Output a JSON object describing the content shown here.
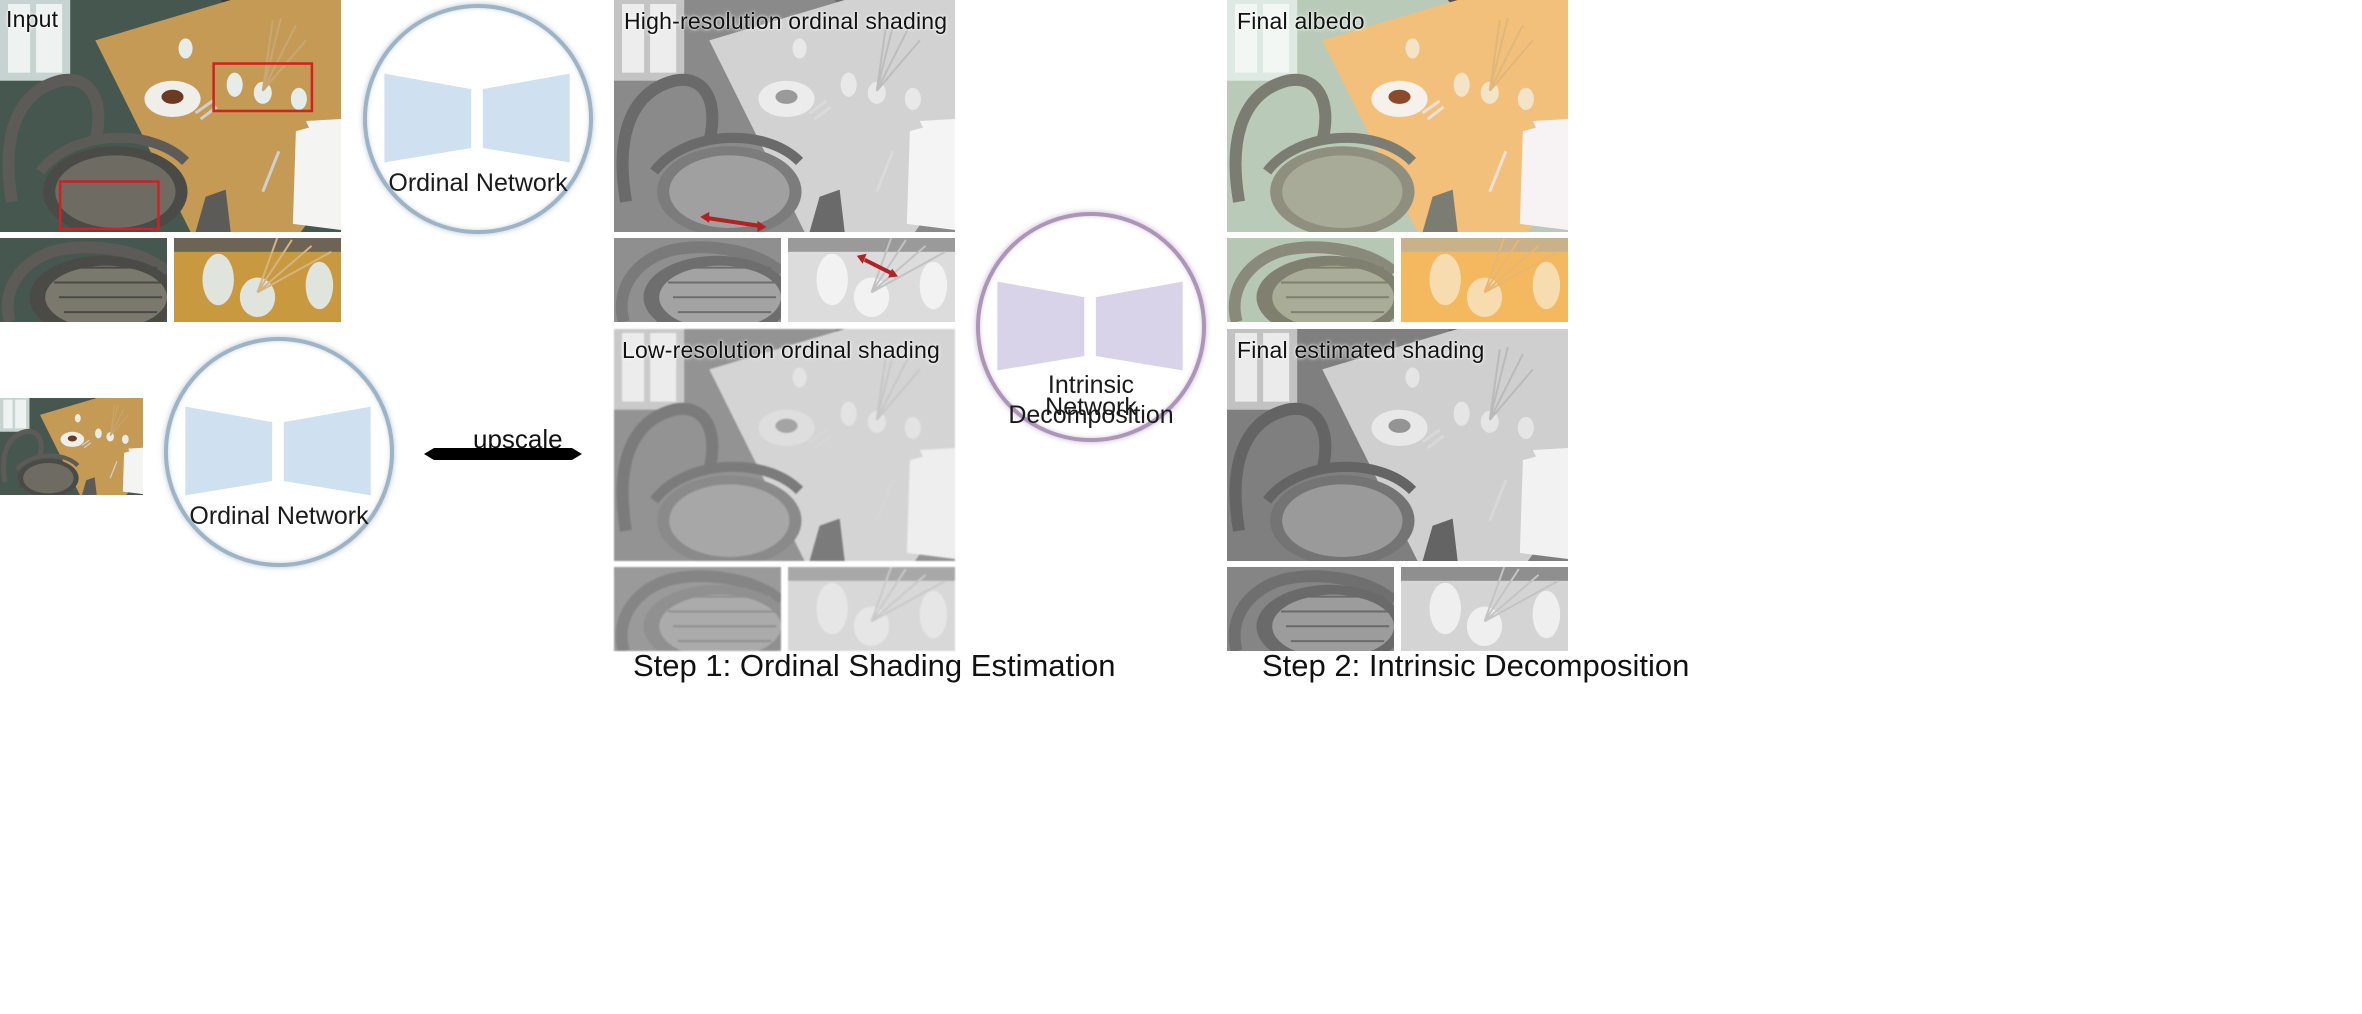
{
  "panels": {
    "input": "Input",
    "high_res": "High-resolution ordinal shading",
    "low_res": "Low-resolution ordinal shading",
    "final_albedo": "Final albedo",
    "final_shading": "Final estimated shading"
  },
  "networks": {
    "ordinal_top": "Ordinal Network",
    "ordinal_bottom": "Ordinal Network",
    "intrinsic_line1": "Intrinsic Decomposition",
    "intrinsic_line2": "Network"
  },
  "arrow": {
    "label": "upscale"
  },
  "steps": {
    "step1": "Step 1: Ordinal Shading Estimation",
    "step2": "Step 2: Intrinsic Decomposition"
  },
  "colors": {
    "network_blue_fill": "#cfe0f1",
    "network_purple_fill": "#d9d3ea",
    "circle_blue_border": "#9db3c6",
    "circle_purple_border": "#ad95b8",
    "highlight_box": "#d42020",
    "annotation_arrow": "#b22222"
  }
}
